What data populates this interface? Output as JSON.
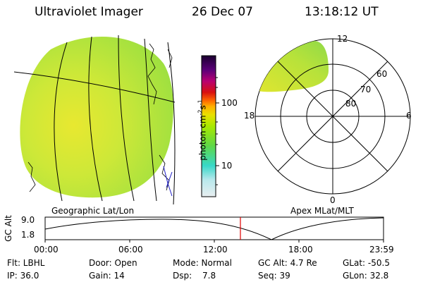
{
  "header": {
    "instrument": "Ultraviolet Imager",
    "date": "26 Dec 07",
    "time": "13:18:12 UT"
  },
  "colorbar": {
    "label": "photon cm",
    "label_exp1": "-2",
    "label_s": "s",
    "label_exp2": "-1",
    "tick_100": "100",
    "tick_10": "10",
    "colors": [
      "#1a0030",
      "#5a0078",
      "#b80072",
      "#d81010",
      "#ff8a00",
      "#e8e000",
      "#a8e800",
      "#5ed848",
      "#38d8c8",
      "#d0e8ec"
    ]
  },
  "geo_panel": {
    "title": "Geographic Lat/Lon",
    "fill_color": "#c8e838"
  },
  "polar_panel": {
    "title": "Apex MLat/MLT",
    "mlt_12": "12",
    "mlt_18": "18",
    "mlt_6": "6",
    "mlt_0": "0",
    "lat_60": "60",
    "lat_70": "70",
    "lat_80": "80"
  },
  "alt_plot": {
    "label": "GC Alt",
    "y_top": "9.0",
    "y_bottom": "1.8",
    "x_ticks": [
      "00:00",
      "06:00",
      "12:00",
      "18:00",
      "23:59"
    ],
    "marker_color": "#e00000"
  },
  "info": {
    "flt": "Flt: LBHL",
    "door": "Door: Open",
    "mode": "Mode: Normal",
    "gcalt": "GC Alt: 4.7 Re",
    "glat": "GLat: -50.5",
    "ip": "IP: 36.0",
    "gain": "Gain: 14",
    "dsp_label": "Dsp:",
    "dsp_value": "7.8",
    "seq": "Seq: 39",
    "glon": "GLon: 32.8"
  }
}
